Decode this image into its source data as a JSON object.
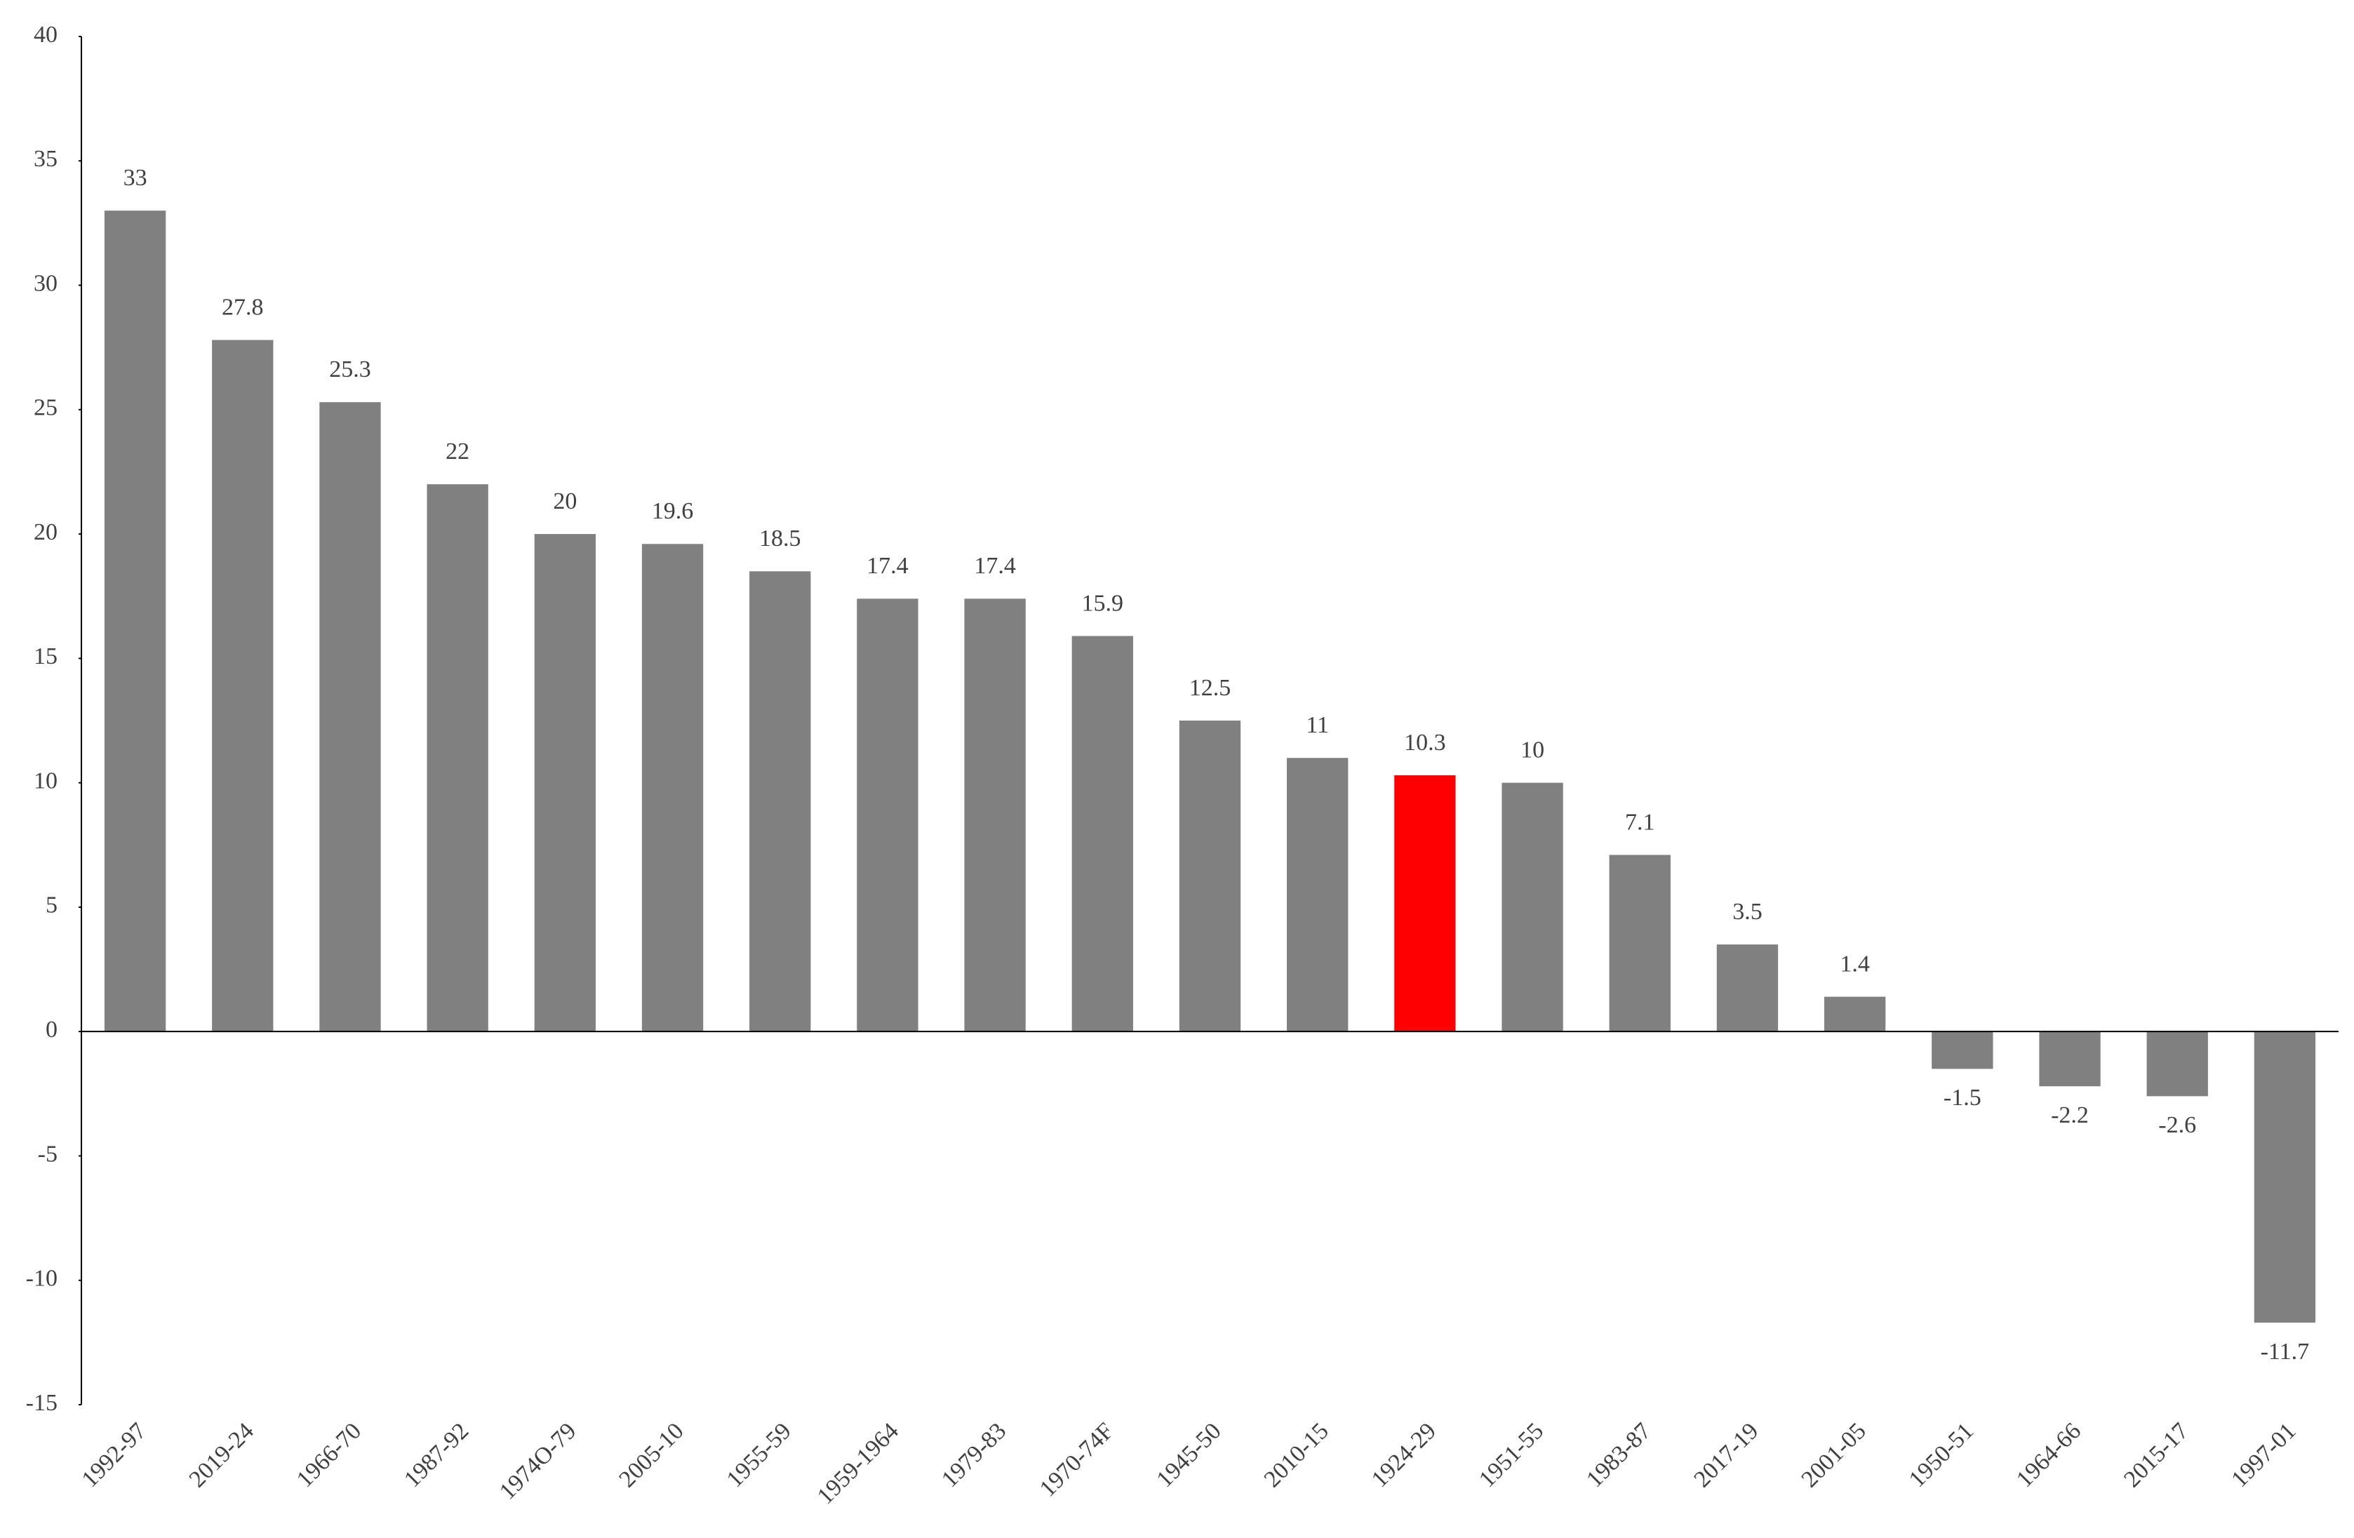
{
  "chart_data": {
    "type": "bar",
    "categories": [
      "1992-97",
      "2019-24",
      "1966-70",
      "1987-92",
      "1974O-79",
      "2005-10",
      "1955-59",
      "1959-1964",
      "1979-83",
      "1970-74F",
      "1945-50",
      "2010-15",
      "1924-29",
      "1951-55",
      "1983-87",
      "2017-19",
      "2001-05",
      "1950-51",
      "1964-66",
      "2015-17",
      "1997-01"
    ],
    "values": [
      33,
      27.8,
      25.3,
      22,
      20,
      19.6,
      18.5,
      17.4,
      17.4,
      15.9,
      12.5,
      11,
      10.3,
      10,
      7.1,
      3.5,
      1.4,
      -1.5,
      -2.2,
      -2.6,
      -11.7
    ],
    "colors": [
      "#808080",
      "#808080",
      "#808080",
      "#808080",
      "#808080",
      "#808080",
      "#808080",
      "#808080",
      "#808080",
      "#808080",
      "#808080",
      "#808080",
      "#ff0000",
      "#808080",
      "#808080",
      "#808080",
      "#808080",
      "#808080",
      "#808080",
      "#808080",
      "#808080"
    ],
    "ylim": [
      -15,
      40
    ],
    "yticks": [
      -15,
      -10,
      -5,
      0,
      5,
      10,
      15,
      20,
      25,
      30,
      35,
      40
    ],
    "grid": false
  }
}
